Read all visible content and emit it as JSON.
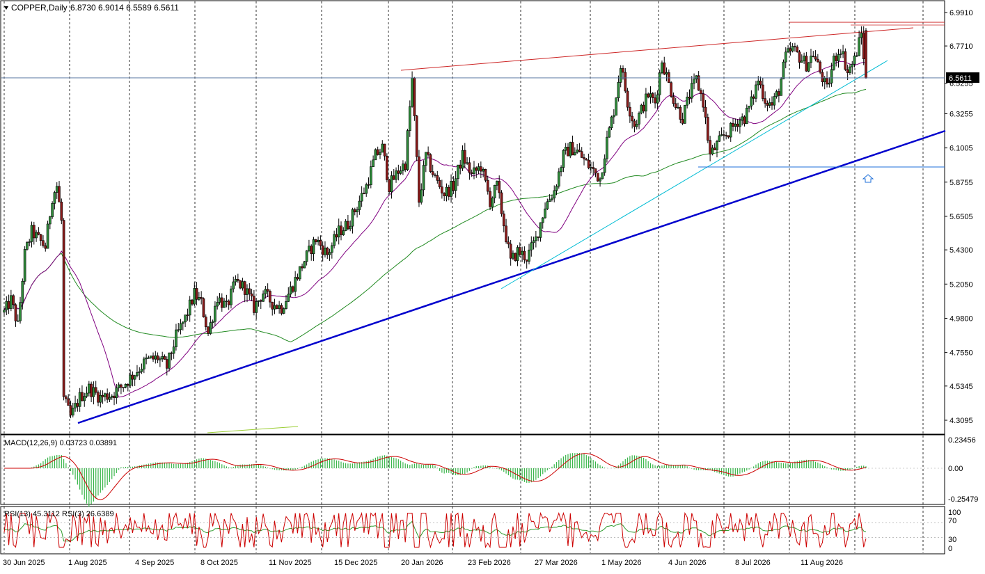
{
  "window": {
    "symbol_label": "COPPER,Daily",
    "ohlc_label": "6.8730 6.9014 6.5589 6.5611",
    "current_price_label": "6.5611"
  },
  "colors": {
    "background": "#ffffff",
    "candle_up": "#2e8b3a",
    "candle_down": "#8b1a1a",
    "candle_outline": "#000000",
    "ma_purple": "#800080",
    "ma_green": "#228b22",
    "trend_blue": "#0000cd",
    "channel_red": "#cd2626",
    "channel_cyan": "#00bcd4",
    "support_blue": "#1e6fd9",
    "macd_hist": "#39b54a",
    "macd_signal": "#cc0000",
    "rsi13": "#2e9b2e",
    "rsi3": "#cc0000",
    "price_label_bg": "#000000",
    "price_label_text": "#ffffff"
  },
  "chart_data": [
    {
      "type": "candlestick",
      "title": "COPPER,Daily",
      "ohlc_last": {
        "open": 6.873,
        "high": 6.9014,
        "low": 6.5589,
        "close": 6.5611
      },
      "y_ticks": [
        "6.9910",
        "6.7710",
        "6.5255",
        "6.3255",
        "6.1005",
        "5.8755",
        "5.6505",
        "5.4300",
        "5.2050",
        "4.9800",
        "4.7550",
        "4.5345",
        "4.3095"
      ],
      "x_ticks": [
        "30 Jun 2025",
        "1 Aug 2025",
        "4 Sep 2025",
        "8 Oct 2025",
        "11 Nov 2025",
        "15 Dec 2025",
        "20 Jan 2026",
        "23 Feb 2026",
        "27 Mar 2026",
        "1 May 2026",
        "4 Jun 2026",
        "8 Jul 2026",
        "11 Aug 2026"
      ],
      "ylim": [
        4.23,
        7.04
      ],
      "grid": true,
      "close_path_approx": [
        [
          0,
          5.02
        ],
        [
          6,
          5.1
        ],
        [
          12,
          4.93
        ],
        [
          18,
          5.4
        ],
        [
          24,
          5.55
        ],
        [
          30,
          5.5
        ],
        [
          36,
          5.45
        ],
        [
          42,
          5.78
        ],
        [
          46,
          5.85
        ],
        [
          50,
          5.62
        ],
        [
          52,
          4.45
        ],
        [
          58,
          4.33
        ],
        [
          66,
          4.46
        ],
        [
          74,
          4.52
        ],
        [
          84,
          4.46
        ],
        [
          94,
          4.48
        ],
        [
          104,
          4.54
        ],
        [
          114,
          4.62
        ],
        [
          124,
          4.7
        ],
        [
          134,
          4.72
        ],
        [
          142,
          4.66
        ],
        [
          150,
          4.86
        ],
        [
          158,
          4.98
        ],
        [
          166,
          5.14
        ],
        [
          172,
          5.08
        ],
        [
          178,
          4.88
        ],
        [
          186,
          5.12
        ],
        [
          194,
          5.05
        ],
        [
          202,
          5.22
        ],
        [
          210,
          5.18
        ],
        [
          218,
          5.05
        ],
        [
          226,
          5.15
        ],
        [
          234,
          5.08
        ],
        [
          242,
          5.05
        ],
        [
          252,
          5.2
        ],
        [
          262,
          5.36
        ],
        [
          272,
          5.5
        ],
        [
          282,
          5.4
        ],
        [
          292,
          5.55
        ],
        [
          300,
          5.6
        ],
        [
          308,
          5.72
        ],
        [
          316,
          5.85
        ],
        [
          324,
          6.05
        ],
        [
          330,
          6.1
        ],
        [
          336,
          5.85
        ],
        [
          344,
          5.95
        ],
        [
          350,
          6.0
        ],
        [
          356,
          6.55
        ],
        [
          362,
          5.75
        ],
        [
          368,
          6.05
        ],
        [
          376,
          5.9
        ],
        [
          384,
          5.8
        ],
        [
          392,
          5.85
        ],
        [
          400,
          6.05
        ],
        [
          408,
          5.92
        ],
        [
          416,
          5.98
        ],
        [
          424,
          5.75
        ],
        [
          430,
          5.85
        ],
        [
          436,
          5.6
        ],
        [
          442,
          5.35
        ],
        [
          448,
          5.42
        ],
        [
          456,
          5.38
        ],
        [
          464,
          5.5
        ],
        [
          472,
          5.72
        ],
        [
          480,
          5.82
        ],
        [
          488,
          6.05
        ],
        [
          494,
          6.1
        ],
        [
          500,
          6.08
        ],
        [
          508,
          6.0
        ],
        [
          514,
          5.95
        ],
        [
          520,
          5.9
        ],
        [
          526,
          6.15
        ],
        [
          532,
          6.35
        ],
        [
          538,
          6.65
        ],
        [
          544,
          6.4
        ],
        [
          550,
          6.25
        ],
        [
          556,
          6.35
        ],
        [
          562,
          6.45
        ],
        [
          568,
          6.4
        ],
        [
          574,
          6.68
        ],
        [
          580,
          6.52
        ],
        [
          586,
          6.38
        ],
        [
          592,
          6.3
        ],
        [
          598,
          6.45
        ],
        [
          604,
          6.55
        ],
        [
          610,
          6.4
        ],
        [
          616,
          6.05
        ],
        [
          622,
          6.12
        ],
        [
          628,
          6.18
        ],
        [
          634,
          6.22
        ],
        [
          640,
          6.28
        ],
        [
          646,
          6.3
        ],
        [
          652,
          6.4
        ],
        [
          658,
          6.55
        ],
        [
          664,
          6.42
        ],
        [
          670,
          6.38
        ],
        [
          676,
          6.48
        ],
        [
          682,
          6.7
        ],
        [
          688,
          6.75
        ],
        [
          694,
          6.7
        ],
        [
          700,
          6.65
        ],
        [
          706,
          6.72
        ],
        [
          712,
          6.6
        ],
        [
          718,
          6.48
        ],
        [
          724,
          6.68
        ],
        [
          730,
          6.76
        ],
        [
          736,
          6.6
        ],
        [
          742,
          6.68
        ],
        [
          748,
          6.85
        ],
        [
          752,
          6.56
        ]
      ],
      "overlays": [
        {
          "name": "MA (purple)"
        },
        {
          "name": "MA (green)"
        },
        {
          "name": "Rising support (blue)"
        },
        {
          "name": "Upper channel (red)"
        },
        {
          "name": "Lower channel (cyan)"
        }
      ],
      "horizontal_levels": [
        {
          "value": 6.5611
        },
        {
          "value": 5.96
        },
        {
          "value": 6.91
        }
      ]
    },
    {
      "type": "bar",
      "title": "MACD(12,26,9) 0.03723 0.03891",
      "y_ticks": [
        "0.23456",
        "0.00",
        "-0.25479"
      ],
      "ylim": [
        -0.27,
        0.26
      ],
      "series": [
        {
          "name": "MACD histogram"
        },
        {
          "name": "Signal"
        }
      ]
    },
    {
      "type": "line",
      "title": "RSI(13) 45.3112 RSI(3) 26.6389",
      "y_ticks": [
        "100",
        "70",
        "30",
        "0"
      ],
      "levels": [
        70,
        30
      ],
      "ylim": [
        0,
        100
      ],
      "series": [
        {
          "name": "RSI(13)"
        },
        {
          "name": "RSI(3)"
        }
      ]
    }
  ]
}
